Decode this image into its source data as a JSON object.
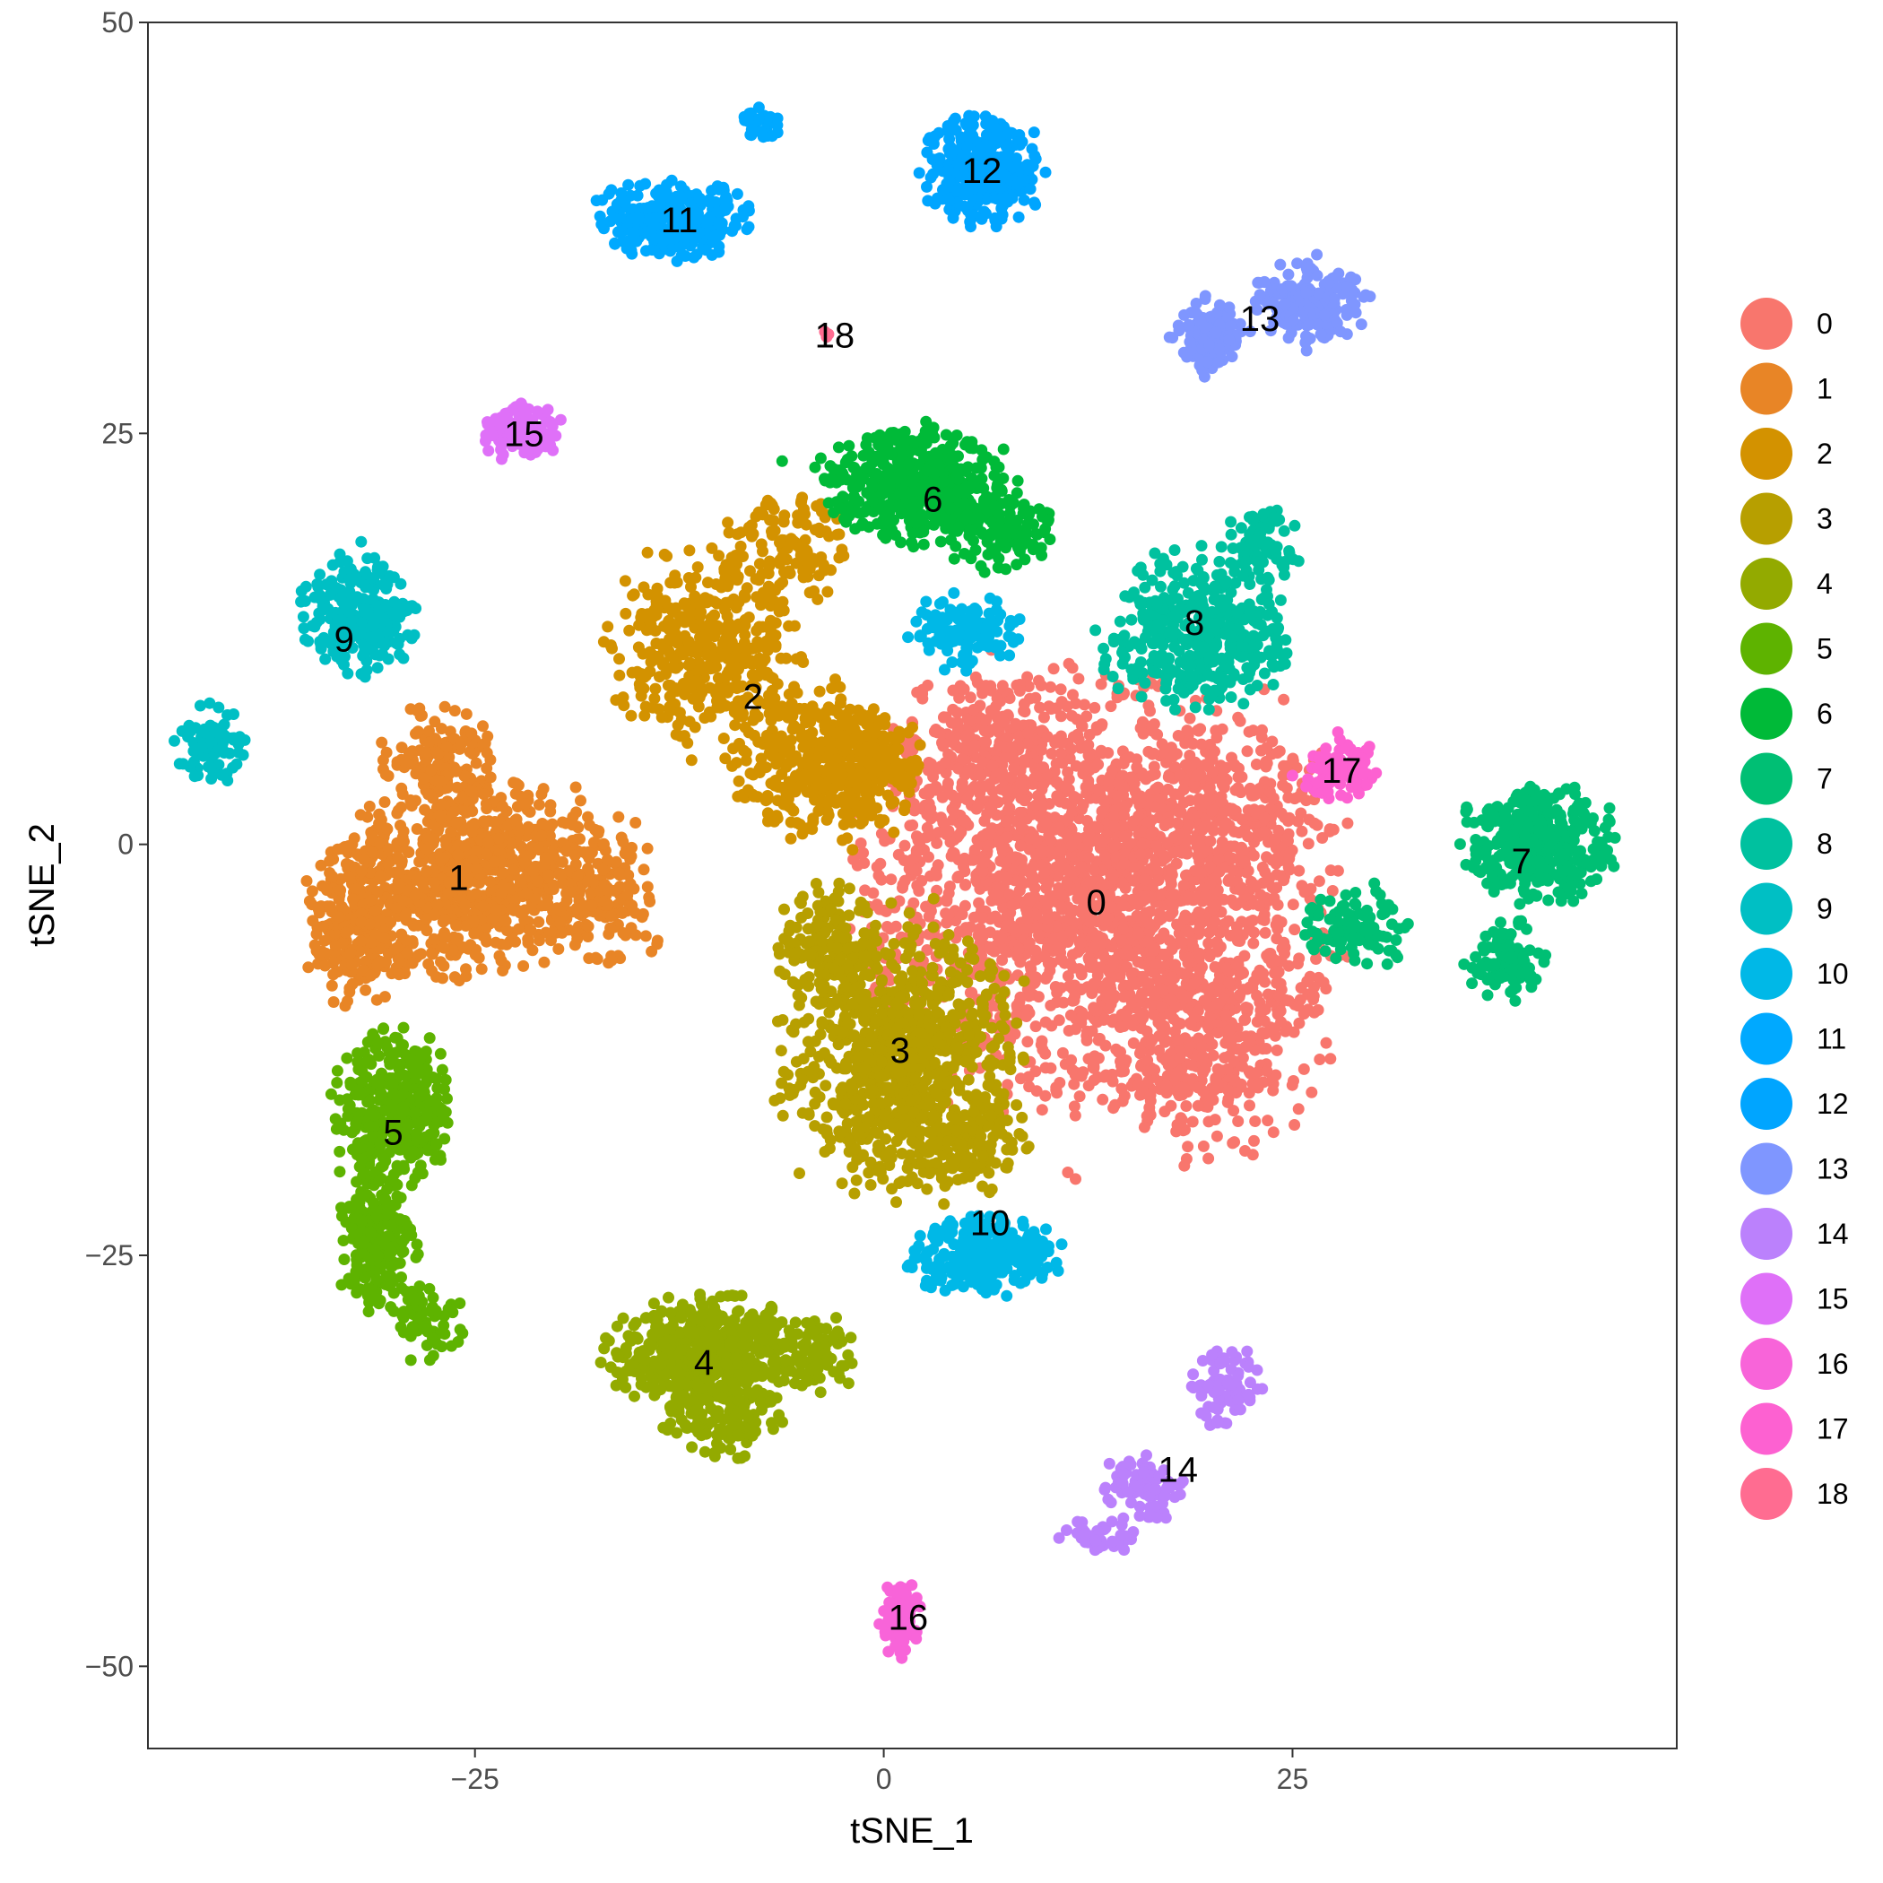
{
  "chart_data": {
    "type": "scatter",
    "title": "",
    "xlabel": "tSNE_1",
    "ylabel": "tSNE_2",
    "xlim": [
      -45,
      48.5
    ],
    "ylim": [
      -55,
      50
    ],
    "x_ticks": [
      -25,
      0,
      25
    ],
    "y_ticks": [
      50,
      25,
      0,
      -25,
      -50
    ],
    "x_tick_labels": [
      "−25",
      "0",
      "25"
    ],
    "y_tick_labels": [
      "50",
      "25",
      "0",
      "−25",
      "−50"
    ],
    "grid": false,
    "legend_position": "right",
    "clusters": [
      {
        "name": "0",
        "color": "#F8766D",
        "label_pos": [
          13,
          -3.5
        ],
        "blobs": [
          [
            13,
            -3,
            12,
            11,
            2200
          ],
          [
            20,
            -12,
            6,
            6,
            300
          ],
          [
            6,
            6,
            5,
            4,
            200
          ],
          [
            20,
            2,
            6,
            5,
            200
          ]
        ]
      },
      {
        "name": "1",
        "color": "#E88526",
        "label_pos": [
          -26,
          -2
        ],
        "blobs": [
          [
            -25,
            -2,
            7,
            5,
            800
          ],
          [
            -32,
            -5,
            3,
            4,
            250
          ],
          [
            -27,
            5,
            3,
            3,
            150
          ],
          [
            -17,
            -3,
            3,
            4,
            120
          ]
        ]
      },
      {
        "name": "2",
        "color": "#D39200",
        "label_pos": [
          -8,
          9
        ],
        "blobs": [
          [
            -11,
            12,
            5,
            5,
            400
          ],
          [
            -6,
            18,
            3,
            3,
            120
          ],
          [
            -4,
            5,
            5,
            4,
            350
          ],
          [
            -1,
            5,
            3,
            3,
            150
          ]
        ]
      },
      {
        "name": "3",
        "color": "#B79F00",
        "label_pos": [
          1,
          -12.5
        ],
        "blobs": [
          [
            1,
            -13,
            6,
            7,
            850
          ],
          [
            -4,
            -6,
            3,
            3,
            150
          ],
          [
            5,
            -18,
            3,
            3,
            120
          ]
        ]
      },
      {
        "name": "4",
        "color": "#93AA00",
        "label_pos": [
          -11,
          -31.5
        ],
        "blobs": [
          [
            -11,
            -31,
            5,
            3,
            450
          ],
          [
            -4,
            -31,
            2,
            2,
            80
          ],
          [
            -10,
            -35,
            3,
            2,
            100
          ]
        ]
      },
      {
        "name": "5",
        "color": "#5EB300",
        "label_pos": [
          -30,
          -17.5
        ],
        "blobs": [
          [
            -30,
            -16,
            3,
            4,
            350
          ],
          [
            -31,
            -24,
            2,
            4,
            200
          ],
          [
            -28,
            -29,
            2,
            2,
            60
          ]
        ]
      },
      {
        "name": "6",
        "color": "#00BA38",
        "label_pos": [
          3,
          21
        ],
        "blobs": [
          [
            2,
            22,
            5,
            3,
            450
          ],
          [
            7,
            19,
            3,
            2,
            120
          ]
        ]
      },
      {
        "name": "7",
        "color": "#00BF74",
        "label_pos": [
          39,
          -1
        ],
        "blobs": [
          [
            40,
            0,
            4,
            3,
            380
          ],
          [
            38,
            -7,
            2,
            2,
            100
          ],
          [
            29,
            -5,
            3,
            2,
            100
          ]
        ]
      },
      {
        "name": "8",
        "color": "#00C19F",
        "label_pos": [
          19,
          13.5
        ],
        "blobs": [
          [
            19,
            13,
            5,
            4,
            400
          ],
          [
            23,
            18,
            2,
            2,
            80
          ]
        ]
      },
      {
        "name": "9",
        "color": "#00BFC4",
        "label_pos": [
          -33,
          12.5
        ],
        "blobs": [
          [
            -32,
            14,
            3,
            3,
            250
          ],
          [
            -41,
            6,
            2,
            2,
            80
          ]
        ]
      },
      {
        "name": "10",
        "color": "#00B8E7",
        "label_pos": [
          6.5,
          -23
        ],
        "blobs": [
          [
            6,
            -25,
            4,
            2,
            250
          ],
          [
            5,
            13,
            3,
            2,
            120
          ]
        ]
      },
      {
        "name": "11",
        "color": "#00A9FF",
        "label_pos": [
          -12.5,
          38
        ],
        "blobs": [
          [
            -13,
            38,
            4,
            2,
            300
          ],
          [
            -7.5,
            44,
            1,
            1,
            30
          ]
        ]
      },
      {
        "name": "12",
        "color": "#00A5FF",
        "label_pos": [
          6,
          41
        ],
        "blobs": [
          [
            6,
            41,
            3,
            3,
            300
          ]
        ]
      },
      {
        "name": "13",
        "color": "#7F96FF",
        "label_pos": [
          23,
          32
        ],
        "blobs": [
          [
            26,
            33,
            3,
            2,
            200
          ],
          [
            20,
            31,
            2,
            2,
            150
          ]
        ]
      },
      {
        "name": "14",
        "color": "#BB81FC",
        "label_pos": [
          18,
          -38
        ],
        "blobs": [
          [
            21,
            -33,
            2,
            2,
            80
          ],
          [
            16,
            -39,
            2,
            2,
            80
          ],
          [
            13,
            -42,
            2,
            1,
            40
          ]
        ]
      },
      {
        "name": "15",
        "color": "#DF70F8",
        "label_pos": [
          -22,
          25
        ],
        "blobs": [
          [
            -22,
            25,
            2,
            1.5,
            120
          ]
        ]
      },
      {
        "name": "16",
        "color": "#F864D9",
        "label_pos": [
          1.5,
          -47
        ],
        "blobs": [
          [
            1,
            -47,
            1,
            2,
            100
          ]
        ]
      },
      {
        "name": "17",
        "color": "#FD61D1",
        "label_pos": [
          28,
          4.5
        ],
        "blobs": [
          [
            28,
            4.5,
            2,
            1.5,
            100
          ]
        ]
      },
      {
        "name": "18",
        "color": "#FF6C91",
        "label_pos": [
          -3,
          31
        ],
        "blobs": [
          [
            -3.5,
            31,
            0.3,
            0.3,
            3
          ]
        ]
      }
    ]
  }
}
